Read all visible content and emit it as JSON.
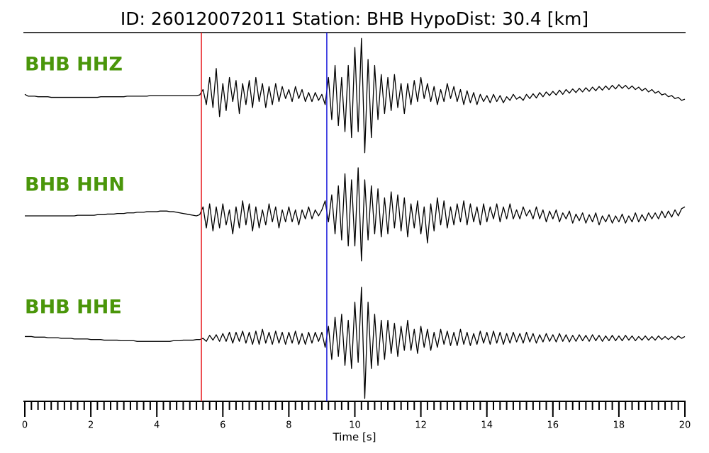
{
  "chart_data": {
    "type": "seismogram",
    "title": "ID: 260120072011   Station: BHB   HypoDist:     30.4 [km]",
    "x_label": "Time [s]",
    "xlim": [
      0,
      20
    ],
    "xticks": [
      0,
      2,
      4,
      6,
      8,
      10,
      12,
      14,
      16,
      18,
      20
    ],
    "xminor": 0.2,
    "ylim": [
      -1,
      1
    ],
    "label_color": "#4a960a",
    "markers": [
      {
        "x": 5.35,
        "color": "#e8191e"
      },
      {
        "x": 9.15,
        "color": "#1a1adb"
      }
    ],
    "x": [
      0,
      0.1,
      0.2,
      0.3,
      0.4,
      0.5,
      0.6,
      0.7,
      0.8,
      0.9,
      1,
      1.1,
      1.2,
      1.3,
      1.4,
      1.5,
      1.6,
      1.7,
      1.8,
      1.9,
      2,
      2.1,
      2.2,
      2.3,
      2.4,
      2.5,
      2.6,
      2.7,
      2.8,
      2.9,
      3,
      3.1,
      3.2,
      3.3,
      3.4,
      3.5,
      3.6,
      3.7,
      3.8,
      3.9,
      4,
      4.1,
      4.2,
      4.3,
      4.4,
      4.5,
      4.6,
      4.7,
      4.8,
      4.9,
      5,
      5.1,
      5.2,
      5.3,
      5.4,
      5.5,
      5.6,
      5.7,
      5.8,
      5.9,
      6,
      6.1,
      6.2,
      6.3,
      6.4,
      6.5,
      6.6,
      6.7,
      6.8,
      6.9,
      7,
      7.1,
      7.2,
      7.3,
      7.4,
      7.5,
      7.6,
      7.7,
      7.8,
      7.9,
      8,
      8.1,
      8.2,
      8.3,
      8.4,
      8.5,
      8.6,
      8.7,
      8.8,
      8.9,
      9,
      9.1,
      9.2,
      9.3,
      9.4,
      9.5,
      9.6,
      9.7,
      9.8,
      9.9,
      10,
      10.1,
      10.2,
      10.3,
      10.4,
      10.5,
      10.6,
      10.7,
      10.8,
      10.9,
      11,
      11.1,
      11.2,
      11.3,
      11.4,
      11.5,
      11.6,
      11.7,
      11.8,
      11.9,
      12,
      12.1,
      12.2,
      12.3,
      12.4,
      12.5,
      12.6,
      12.7,
      12.8,
      12.9,
      13,
      13.1,
      13.2,
      13.3,
      13.4,
      13.5,
      13.6,
      13.7,
      13.8,
      13.9,
      14,
      14.1,
      14.2,
      14.3,
      14.4,
      14.5,
      14.6,
      14.7,
      14.8,
      14.9,
      15,
      15.1,
      15.2,
      15.3,
      15.4,
      15.5,
      15.6,
      15.7,
      15.8,
      15.9,
      16,
      16.1,
      16.2,
      16.3,
      16.4,
      16.5,
      16.6,
      16.7,
      16.8,
      16.9,
      17,
      17.1,
      17.2,
      17.3,
      17.4,
      17.5,
      17.6,
      17.7,
      17.8,
      17.9,
      18,
      18.1,
      18.2,
      18.3,
      18.4,
      18.5,
      18.6,
      18.7,
      18.8,
      18.9,
      19,
      19.1,
      19.2,
      19.3,
      19.4,
      19.5,
      19.6,
      19.7,
      19.8,
      19.9,
      20
    ],
    "series": [
      {
        "name": "BHB HHZ",
        "color": "#000000",
        "values": [
          0.02,
          -0.01,
          -0.01,
          -0.01,
          -0.02,
          -0.02,
          -0.02,
          -0.02,
          -0.03,
          -0.03,
          -0.03,
          -0.03,
          -0.03,
          -0.03,
          -0.03,
          -0.03,
          -0.03,
          -0.03,
          -0.03,
          -0.03,
          -0.03,
          -0.03,
          -0.03,
          -0.02,
          -0.02,
          -0.02,
          -0.02,
          -0.02,
          -0.02,
          -0.02,
          -0.02,
          -0.01,
          -0.01,
          -0.01,
          -0.01,
          -0.01,
          -0.01,
          -0.01,
          0,
          0,
          0,
          0,
          0,
          0,
          0,
          0,
          0,
          0,
          0,
          0,
          0,
          0,
          0,
          0.01,
          0.1,
          -0.15,
          0.3,
          -0.2,
          0.45,
          -0.35,
          0.2,
          -0.25,
          0.3,
          -0.1,
          0.25,
          -0.3,
          0.2,
          -0.15,
          0.25,
          -0.2,
          0.3,
          -0.1,
          0.2,
          -0.2,
          0.15,
          -0.15,
          0.2,
          -0.1,
          0.15,
          -0.05,
          0.1,
          -0.1,
          0.15,
          -0.05,
          0.1,
          -0.1,
          0.05,
          -0.1,
          0.05,
          -0.08,
          0.02,
          -0.15,
          0.3,
          -0.4,
          0.5,
          -0.5,
          0.3,
          -0.6,
          0.5,
          -0.7,
          0.8,
          -0.6,
          0.95,
          -0.95,
          0.6,
          -0.7,
          0.5,
          -0.4,
          0.35,
          -0.3,
          0.3,
          -0.25,
          0.35,
          -0.2,
          0.2,
          -0.3,
          0.2,
          -0.15,
          0.25,
          -0.1,
          0.3,
          -0.05,
          0.2,
          -0.1,
          0.15,
          -0.15,
          0.1,
          -0.1,
          0.2,
          -0.05,
          0.15,
          -0.1,
          0.1,
          -0.15,
          0.08,
          -0.12,
          0.05,
          -0.15,
          0.02,
          -0.1,
          0,
          -0.12,
          0.02,
          -0.1,
          0,
          -0.12,
          -0.02,
          -0.08,
          0.02,
          -0.06,
          -0.02,
          -0.08,
          0.02,
          -0.05,
          0.03,
          -0.04,
          0.05,
          -0.02,
          0.06,
          0,
          0.07,
          0.01,
          0.09,
          0.02,
          0.1,
          0.04,
          0.11,
          0.05,
          0.12,
          0.06,
          0.13,
          0.07,
          0.14,
          0.08,
          0.15,
          0.09,
          0.16,
          0.1,
          0.17,
          0.11,
          0.18,
          0.12,
          0.17,
          0.11,
          0.16,
          0.1,
          0.14,
          0.08,
          0.12,
          0.06,
          0.1,
          0.04,
          0.07,
          0.01,
          0.03,
          -0.02,
          0,
          -0.05,
          -0.03,
          -0.08,
          -0.06
        ]
      },
      {
        "name": "BHB HHN",
        "color": "#000000",
        "values": [
          0,
          0,
          0,
          0,
          0,
          0,
          0,
          0,
          0,
          0,
          0,
          0,
          0,
          0,
          0,
          0,
          0.01,
          0.01,
          0.01,
          0.01,
          0.01,
          0.01,
          0.02,
          0.02,
          0.02,
          0.03,
          0.03,
          0.03,
          0.04,
          0.04,
          0.04,
          0.05,
          0.05,
          0.05,
          0.06,
          0.06,
          0.06,
          0.07,
          0.07,
          0.07,
          0.07,
          0.08,
          0.08,
          0.08,
          0.07,
          0.07,
          0.06,
          0.05,
          0.04,
          0.03,
          0.02,
          0.01,
          0,
          0.02,
          0.15,
          -0.2,
          0.2,
          -0.25,
          0.15,
          -0.2,
          0.2,
          -0.15,
          0.1,
          -0.3,
          0.15,
          -0.2,
          0.25,
          -0.15,
          0.2,
          -0.25,
          0.15,
          -0.2,
          0.1,
          -0.15,
          0.2,
          -0.1,
          0.15,
          -0.2,
          0.1,
          -0.1,
          0.15,
          -0.1,
          0.1,
          -0.15,
          0.1,
          -0.05,
          0.15,
          -0.05,
          0.1,
          0,
          0.1,
          0.25,
          -0.1,
          0.35,
          -0.3,
          0.5,
          -0.4,
          0.7,
          -0.5,
          0.6,
          -0.5,
          0.8,
          -0.75,
          0.6,
          -0.4,
          0.5,
          -0.3,
          0.45,
          -0.35,
          0.3,
          -0.3,
          0.4,
          -0.2,
          0.35,
          -0.25,
          0.3,
          -0.35,
          0.2,
          -0.2,
          0.25,
          -0.3,
          0.15,
          -0.45,
          0.2,
          -0.25,
          0.3,
          -0.15,
          0.25,
          -0.2,
          0.15,
          -0.15,
          0.2,
          -0.1,
          0.25,
          -0.15,
          0.2,
          -0.1,
          0.15,
          -0.15,
          0.2,
          -0.1,
          0.15,
          -0.05,
          0.2,
          -0.1,
          0.15,
          -0.05,
          0.2,
          -0.05,
          0.1,
          -0.05,
          0.15,
          0,
          0.1,
          -0.05,
          0.15,
          -0.05,
          0.1,
          -0.1,
          0.08,
          -0.05,
          0.1,
          -0.1,
          0.05,
          -0.05,
          0.08,
          -0.12,
          0.03,
          -0.08,
          0.05,
          -0.12,
          0.02,
          -0.1,
          0.05,
          -0.15,
          0,
          -0.1,
          0.02,
          -0.12,
          0,
          -0.1,
          0.03,
          -0.12,
          0,
          -0.1,
          0.05,
          -0.1,
          0.02,
          -0.08,
          0.05,
          -0.05,
          0.05,
          -0.05,
          0.08,
          -0.03,
          0.08,
          -0.02,
          0.1,
          0,
          0.12,
          0.15
        ]
      },
      {
        "name": "BHB HHE",
        "color": "#000000",
        "values": [
          0.03,
          0.03,
          0.03,
          0.02,
          0.02,
          0.02,
          0.02,
          0.01,
          0.01,
          0.01,
          0.01,
          0,
          0,
          0,
          0,
          -0.01,
          -0.01,
          -0.01,
          -0.01,
          -0.01,
          -0.02,
          -0.02,
          -0.02,
          -0.02,
          -0.03,
          -0.03,
          -0.03,
          -0.03,
          -0.03,
          -0.04,
          -0.04,
          -0.04,
          -0.04,
          -0.04,
          -0.05,
          -0.05,
          -0.05,
          -0.05,
          -0.05,
          -0.05,
          -0.05,
          -0.05,
          -0.05,
          -0.05,
          -0.05,
          -0.04,
          -0.04,
          -0.04,
          -0.03,
          -0.03,
          -0.03,
          -0.03,
          -0.02,
          -0.02,
          0,
          -0.05,
          0.05,
          -0.03,
          0.06,
          -0.05,
          0.08,
          -0.05,
          0.1,
          -0.08,
          0.1,
          -0.05,
          0.12,
          -0.08,
          0.1,
          -0.1,
          0.12,
          -0.1,
          0.15,
          -0.08,
          0.1,
          -0.1,
          0.12,
          -0.08,
          0.1,
          -0.1,
          0.1,
          -0.08,
          0.12,
          -0.1,
          0.08,
          -0.1,
          0.1,
          -0.08,
          0.1,
          -0.05,
          0.1,
          -0.15,
          0.2,
          -0.35,
          0.35,
          -0.3,
          0.4,
          -0.45,
          0.3,
          -0.5,
          0.6,
          -0.4,
          0.85,
          -1,
          0.6,
          -0.5,
          0.4,
          -0.45,
          0.3,
          -0.35,
          0.3,
          -0.25,
          0.25,
          -0.3,
          0.2,
          -0.2,
          0.3,
          -0.2,
          0.15,
          -0.25,
          0.2,
          -0.15,
          0.15,
          -0.2,
          0.1,
          -0.15,
          0.15,
          -0.1,
          0.12,
          -0.12,
          0.1,
          -0.12,
          0.15,
          -0.1,
          0.1,
          -0.12,
          0.08,
          -0.1,
          0.12,
          -0.08,
          0.1,
          -0.1,
          0.12,
          -0.08,
          0.1,
          -0.1,
          0.08,
          -0.08,
          0.1,
          -0.06,
          0.08,
          -0.08,
          0.1,
          -0.06,
          0.08,
          -0.08,
          0.06,
          -0.06,
          0.08,
          -0.05,
          0.06,
          -0.06,
          0.08,
          -0.05,
          0.06,
          -0.06,
          0.05,
          -0.05,
          0.06,
          -0.04,
          0.05,
          -0.05,
          0.06,
          -0.04,
          0.05,
          -0.05,
          0.04,
          -0.04,
          0.05,
          -0.04,
          0.04,
          -0.04,
          0.05,
          -0.03,
          0.04,
          -0.04,
          0.03,
          -0.03,
          0.04,
          -0.03,
          0.03,
          -0.03,
          0.04,
          -0.02,
          0.03,
          -0.02,
          0.03,
          -0.02,
          0.04,
          0,
          0.03
        ]
      }
    ]
  }
}
